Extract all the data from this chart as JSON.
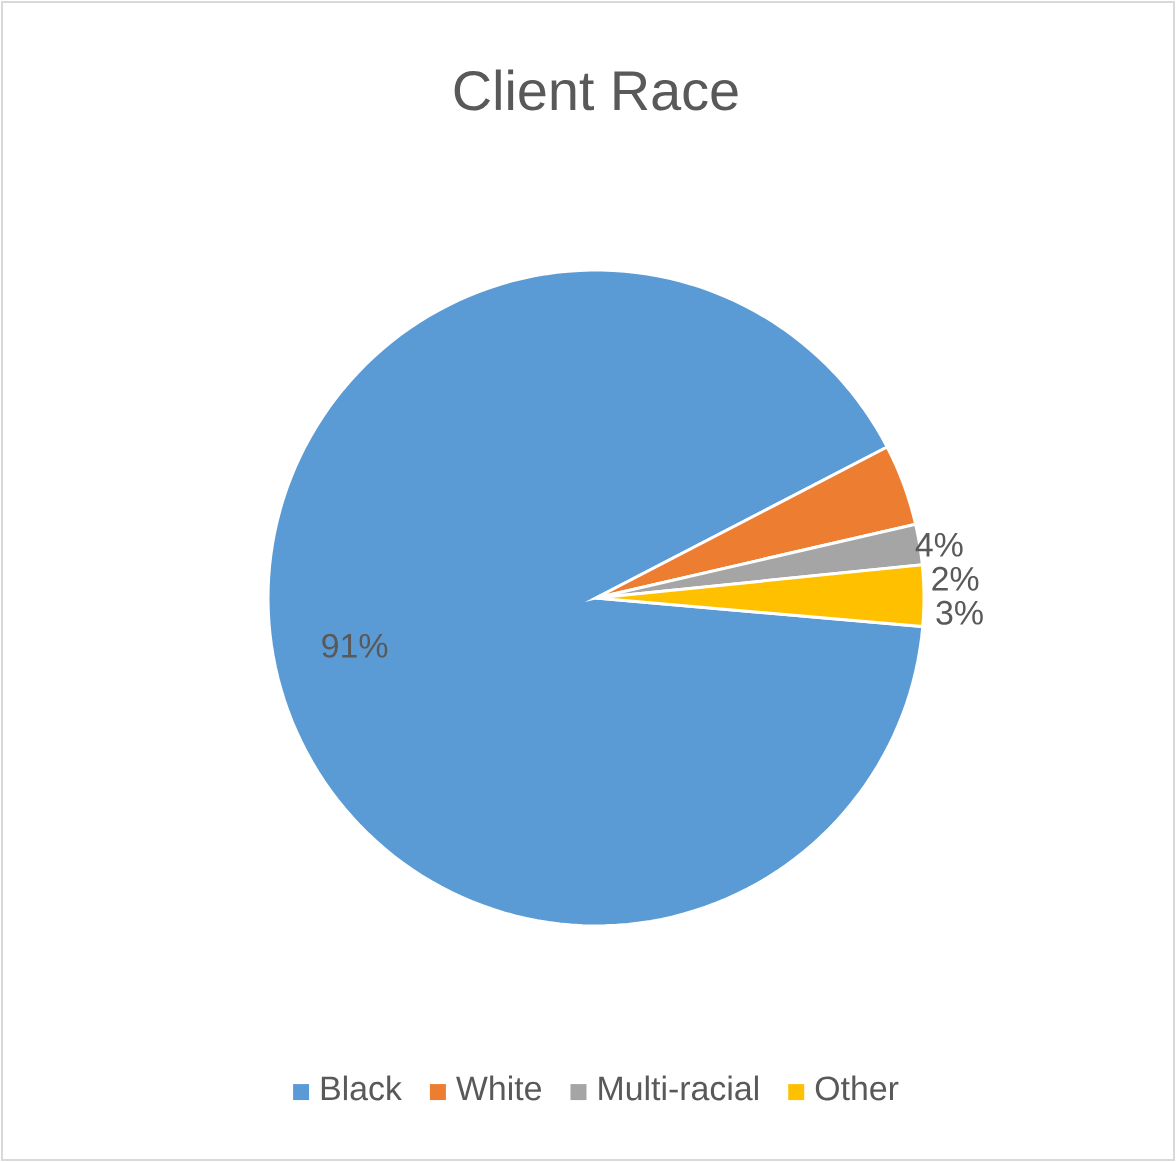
{
  "chart_data": {
    "type": "pie",
    "title": "Client Race",
    "categories": [
      "Black",
      "White",
      "Multi-racial",
      "Other"
    ],
    "values": [
      91,
      4,
      2,
      3
    ],
    "colors": [
      "#5b9bd5",
      "#ed7d31",
      "#a5a5a5",
      "#ffc000"
    ],
    "value_labels": [
      "91%",
      "4%",
      "2%",
      "3%"
    ],
    "legend": "bottom"
  }
}
